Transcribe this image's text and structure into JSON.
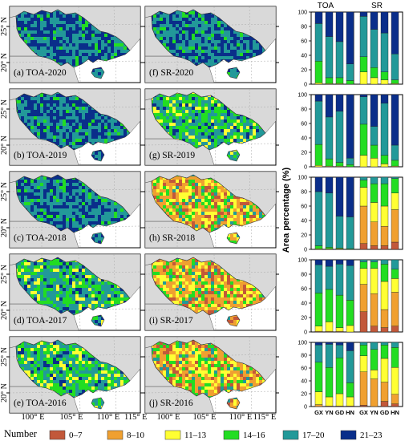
{
  "figure": {
    "y_axis_label": "Area percentage (%)",
    "column_headers": [
      "TOA",
      "SR"
    ],
    "lat_labels": [
      "25° N",
      "20° N"
    ],
    "lon_labels": [
      "100° E",
      "105° E",
      "110° E",
      "115° E"
    ],
    "legend_title": "Number",
    "legend": [
      {
        "label": "0–7",
        "color": "#c2583a"
      },
      {
        "label": "8–10",
        "color": "#f0a030"
      },
      {
        "label": "11–13",
        "color": "#ffff33"
      },
      {
        "label": "14–16",
        "color": "#22dd22"
      },
      {
        "label": "17–20",
        "color": "#229999"
      },
      {
        "label": "21–23",
        "color": "#0a2e8a"
      }
    ],
    "map_colors": {
      "land": "#d9d9d9",
      "ocean": "#ffffff",
      "border": "#555555"
    }
  },
  "maps": [
    {
      "label": "(a) TOA-2020",
      "row": 0,
      "col": 0,
      "palette": "toa_blue"
    },
    {
      "label": "(f) SR-2020",
      "row": 0,
      "col": 1,
      "palette": "toa_blue"
    },
    {
      "label": "(b) TOA-2019",
      "row": 1,
      "col": 0,
      "palette": "toa_blue"
    },
    {
      "label": "(g) SR-2019",
      "row": 1,
      "col": 1,
      "palette": "mixed"
    },
    {
      "label": "(c) TOA-2018",
      "row": 2,
      "col": 0,
      "palette": "toa_blue"
    },
    {
      "label": "(h) SR-2018",
      "row": 2,
      "col": 1,
      "palette": "sr_warm"
    },
    {
      "label": "(d) TOA-2017",
      "row": 3,
      "col": 0,
      "palette": "mixed"
    },
    {
      "label": "(i) SR-2017",
      "row": 3,
      "col": 1,
      "palette": "sr_warm"
    },
    {
      "label": "(e) TOA-2016",
      "row": 4,
      "col": 0,
      "palette": "mixed"
    },
    {
      "label": "(j) SR-2016",
      "row": 4,
      "col": 1,
      "palette": "sr_warm"
    }
  ],
  "chart_data": {
    "type": "bar",
    "stacked": true,
    "categories": [
      "GX",
      "YN",
      "GD",
      "HN"
    ],
    "groups": [
      "TOA",
      "SR"
    ],
    "ylim": [
      0,
      100
    ],
    "yticks": [
      0,
      20,
      40,
      60,
      80,
      100
    ],
    "ylabel": "Area percentage (%)",
    "series_order": [
      "0–7",
      "8–10",
      "11–13",
      "14–16",
      "17–20",
      "21–23"
    ],
    "panels": [
      {
        "year": "2020",
        "TOA": [
          [
            0,
            0,
            2,
            30,
            52,
            16
          ],
          [
            0,
            0,
            1,
            8,
            57,
            34
          ],
          [
            0,
            0,
            1,
            8,
            50,
            41
          ],
          [
            0,
            0,
            0,
            5,
            23,
            72
          ]
        ],
        "SR": [
          [
            0,
            0,
            17,
            21,
            56,
            6
          ],
          [
            0,
            0,
            9,
            14,
            53,
            24
          ],
          [
            0,
            0,
            6,
            11,
            54,
            29
          ],
          [
            0,
            0,
            1,
            5,
            36,
            58
          ]
        ]
      },
      {
        "year": "2019",
        "TOA": [
          [
            0,
            0,
            2,
            29,
            60,
            9
          ],
          [
            0,
            0,
            1,
            10,
            58,
            31
          ],
          [
            0,
            0,
            1,
            5,
            71,
            23
          ],
          [
            0,
            0,
            0,
            3,
            9,
            88
          ]
        ],
        "SR": [
          [
            0,
            0,
            16,
            43,
            38,
            3
          ],
          [
            0,
            0,
            12,
            18,
            26,
            44
          ],
          [
            0,
            0,
            4,
            12,
            72,
            12
          ],
          [
            0,
            0,
            1,
            8,
            21,
            70
          ]
        ]
      },
      {
        "year": "2018",
        "TOA": [
          [
            0,
            0,
            1,
            4,
            75,
            20
          ],
          [
            0,
            0,
            1,
            2,
            75,
            22
          ],
          [
            0,
            0,
            1,
            1,
            44,
            54
          ],
          [
            0,
            0,
            0,
            1,
            44,
            55
          ]
        ],
        "SR": [
          [
            8,
            52,
            26,
            10,
            4,
            0
          ],
          [
            5,
            33,
            27,
            26,
            9,
            0
          ],
          [
            5,
            27,
            28,
            31,
            9,
            0
          ],
          [
            10,
            45,
            23,
            20,
            2,
            0
          ]
        ]
      },
      {
        "year": "2017",
        "TOA": [
          [
            0,
            1,
            7,
            46,
            39,
            7
          ],
          [
            0,
            1,
            13,
            45,
            32,
            9
          ],
          [
            0,
            1,
            5,
            45,
            43,
            6
          ],
          [
            0,
            0,
            9,
            35,
            48,
            8
          ]
        ],
        "SR": [
          [
            28,
            38,
            22,
            9,
            3,
            0
          ],
          [
            8,
            45,
            35,
            9,
            3,
            0
          ],
          [
            6,
            25,
            39,
            24,
            6,
            0
          ],
          [
            8,
            47,
            19,
            13,
            13,
            0
          ]
        ]
      },
      {
        "year": "2016",
        "TOA": [
          [
            0,
            3,
            20,
            46,
            27,
            4
          ],
          [
            0,
            1,
            14,
            46,
            36,
            3
          ],
          [
            0,
            1,
            19,
            56,
            20,
            4
          ],
          [
            0,
            1,
            14,
            22,
            50,
            13
          ]
        ],
        "SR": [
          [
            2,
            52,
            25,
            17,
            4,
            0
          ],
          [
            0,
            43,
            14,
            32,
            11,
            0
          ],
          [
            8,
            30,
            37,
            21,
            4,
            0
          ],
          [
            4,
            15,
            42,
            31,
            8,
            0
          ]
        ]
      }
    ]
  }
}
